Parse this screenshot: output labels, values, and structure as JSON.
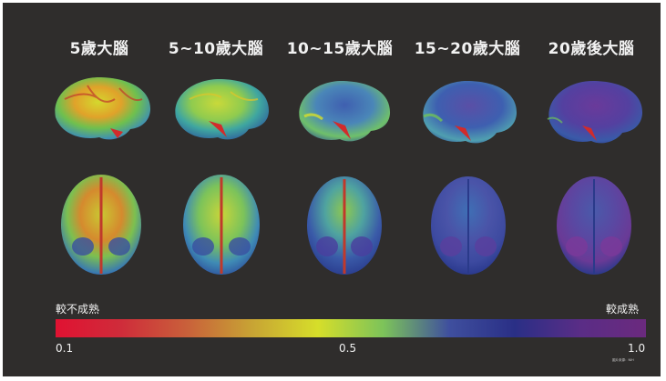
{
  "columns": [
    {
      "title": "5歲大腦"
    },
    {
      "title": "5~10歲大腦"
    },
    {
      "title": "10~15歲大腦"
    },
    {
      "title": "15~20歲大腦"
    },
    {
      "title": "20歲後大腦"
    }
  ],
  "scale": {
    "left_label": "較不成熟",
    "right_label": "較成熟",
    "tick_min": "0.1",
    "tick_mid": "0.5",
    "tick_max": "1.0",
    "colors": [
      "#e01232",
      "#cf2c3a",
      "#c9603a",
      "#c8a434",
      "#d6de2a",
      "#7cc35a",
      "#3f4f9e",
      "#2a2f86",
      "#5a2d86",
      "#6b2a7e"
    ]
  },
  "credit": "圖片來源：NIH"
}
